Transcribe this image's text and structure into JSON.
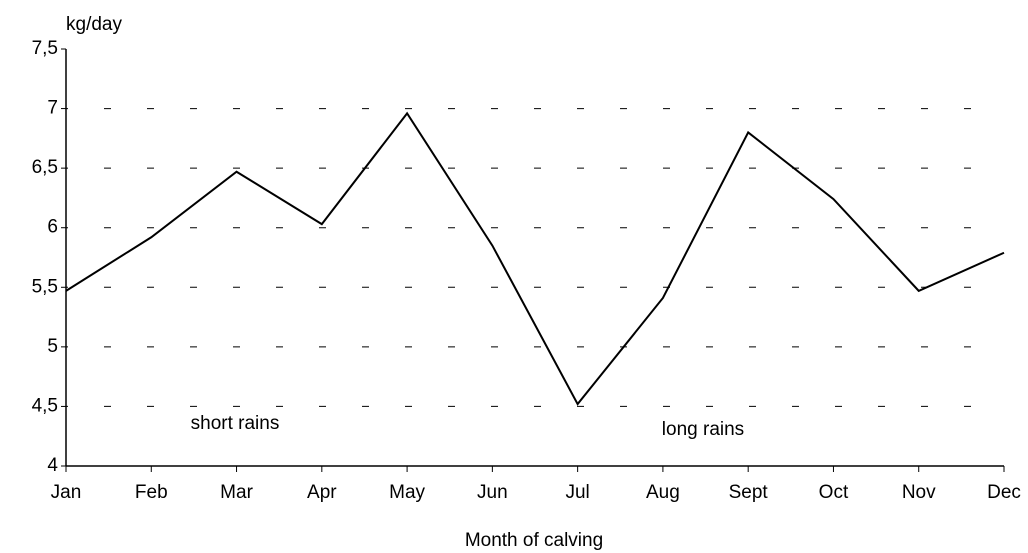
{
  "chart_data": {
    "type": "line",
    "y_label": "kg/day",
    "x_label": "Month of calving",
    "annotations": [
      "short rains",
      "long rains"
    ],
    "categories": [
      "Jan",
      "Feb",
      "Mar",
      "Apr",
      "May",
      "Jun",
      "Jul",
      "Aug",
      "Sept",
      "Oct",
      "Nov",
      "Dec"
    ],
    "values": [
      5.47,
      5.92,
      6.47,
      6.03,
      6.96,
      5.85,
      4.52,
      5.41,
      6.8,
      6.24,
      5.47,
      5.79
    ],
    "color": "#000000",
    "ylim": [
      4,
      7.5
    ],
    "yticks": [
      4,
      {
        "value": 4.5,
        "label": "4,5"
      },
      5,
      {
        "value": 5.5,
        "label": "5,5"
      },
      6,
      {
        "value": 6.5,
        "label": "6,5"
      },
      7,
      {
        "value": 7.5,
        "label": "7,5"
      }
    ],
    "grid": true
  }
}
